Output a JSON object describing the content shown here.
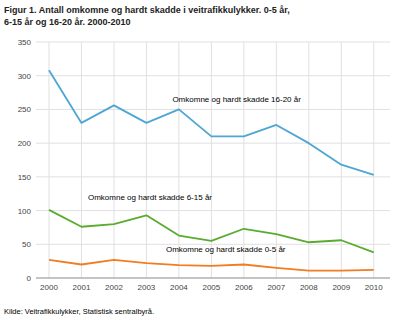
{
  "chart_data": {
    "type": "line",
    "title": "Figur 1. Antall omkomne og hardt skadde i veitrafikkulykker. 0-5 år,",
    "subtitle": "6-15 år og 16-20 år. 2000-2010",
    "source": "Kilde: Veitrafikkulykker, Statistisk sentralbyrå.",
    "x": [
      2000,
      2001,
      2002,
      2003,
      2004,
      2005,
      2006,
      2007,
      2008,
      2009,
      2010
    ],
    "series": [
      {
        "color": "#4da6d4",
        "values": [
          308,
          230,
          256,
          230,
          250,
          210,
          210,
          227,
          200,
          168,
          153
        ]
      },
      {
        "color": "#5aab2e",
        "values": [
          101,
          76,
          80,
          93,
          63,
          55,
          73,
          65,
          53,
          56,
          38
        ]
      },
      {
        "color": "#f07d22",
        "values": [
          27,
          20,
          27,
          22,
          19,
          18,
          20,
          15,
          11,
          11,
          12
        ]
      }
    ],
    "annotations": [
      {
        "text": "Omkomne og hardt skadde 16-20 år",
        "x": 2003.8,
        "y": 258
      },
      {
        "text": "Omkomne og hardt skadde 6-15 år",
        "x": 2001.2,
        "y": 112
      },
      {
        "text": "Omkomne og hardt skadde 0-5 år",
        "x": 2003.6,
        "y": 36
      }
    ],
    "xlim": [
      1999.6,
      2010.5
    ],
    "xticks": [
      2000,
      2001,
      2002,
      2003,
      2004,
      2005,
      2006,
      2007,
      2008,
      2009,
      2010
    ],
    "ylim": [
      0,
      350
    ],
    "yticks": [
      0,
      50,
      100,
      150,
      200,
      250,
      300,
      350
    ],
    "grid": true
  }
}
